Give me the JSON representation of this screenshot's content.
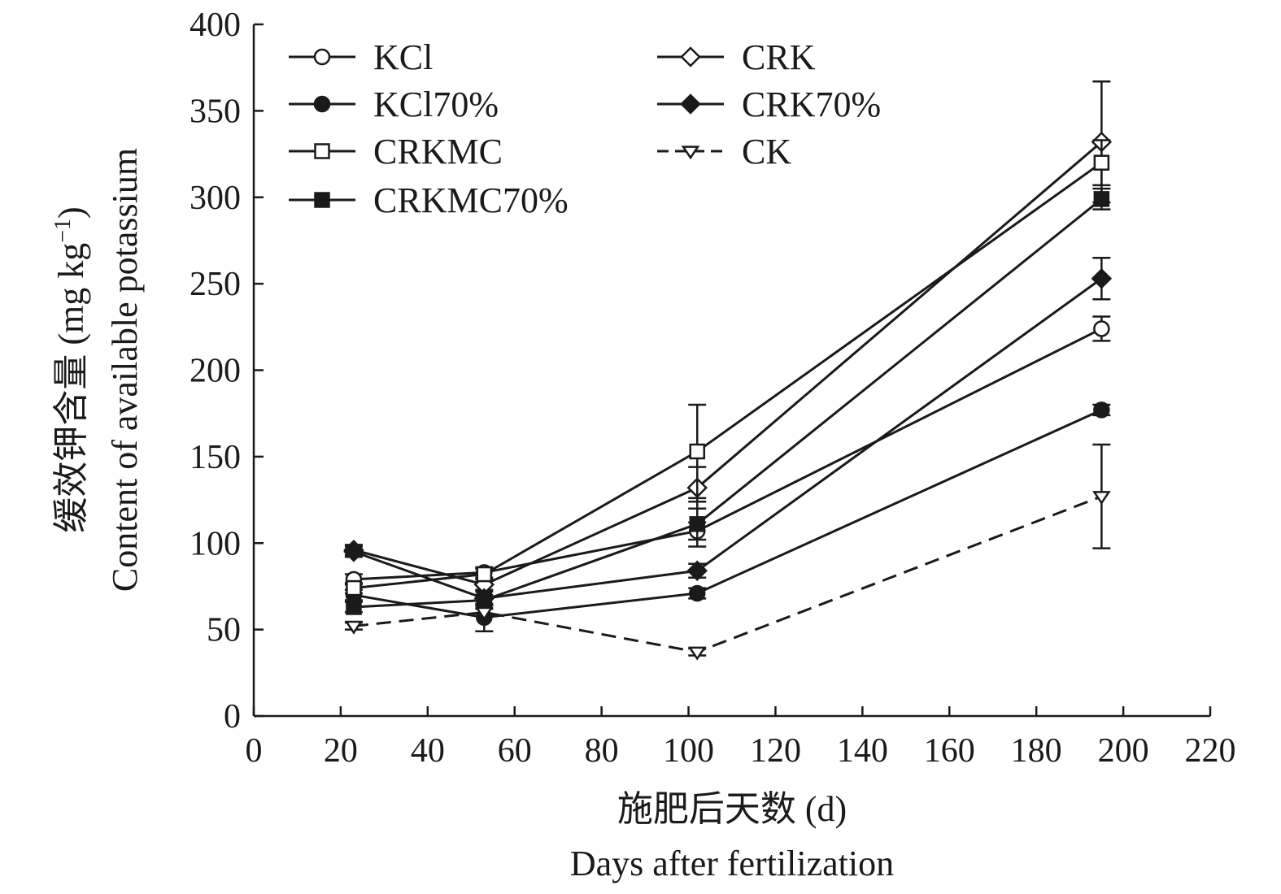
{
  "chart_data": {
    "type": "line",
    "xlabel_cn": "施肥后天数 (d)",
    "xlabel_en": "Days after fertilization",
    "ylabel_cn": "缓效钾含量 (mg kg",
    "ylabel_sup": "−1",
    "ylabel_close": ")",
    "ylabel_en": "Content of available potassium",
    "xlim": [
      0,
      220
    ],
    "ylim": [
      0,
      400
    ],
    "xticks": [
      0,
      20,
      40,
      60,
      80,
      100,
      120,
      140,
      160,
      180,
      200,
      220
    ],
    "yticks": [
      0,
      50,
      100,
      150,
      200,
      250,
      300,
      350,
      400
    ],
    "x": [
      23,
      53,
      102,
      195
    ],
    "legend_position": "top-left",
    "series": [
      {
        "name": "KCl",
        "marker": "circle-open",
        "dash": false,
        "values": [
          79,
          83,
          107,
          224
        ],
        "errors": [
          3,
          3,
          5,
          7
        ]
      },
      {
        "name": "CRK",
        "marker": "diamond-open",
        "dash": false,
        "values": [
          96,
          76,
          132,
          332
        ],
        "errors": [
          3,
          3,
          12,
          35
        ]
      },
      {
        "name": "KCl70%",
        "marker": "circle-filled",
        "dash": false,
        "values": [
          70,
          57,
          71,
          177
        ],
        "errors": [
          3,
          8,
          3,
          3
        ]
      },
      {
        "name": "CRK70%",
        "marker": "diamond-filled",
        "dash": false,
        "values": [
          95,
          68,
          84,
          253
        ],
        "errors": [
          3,
          4,
          4,
          12
        ]
      },
      {
        "name": "CRKMC",
        "marker": "square-open",
        "dash": false,
        "values": [
          74,
          82,
          153,
          320
        ],
        "errors": [
          3,
          3,
          27,
          13
        ]
      },
      {
        "name": "CK",
        "marker": "triangle-down-open",
        "dash": true,
        "values": [
          52,
          60,
          37,
          127
        ],
        "errors": [
          2,
          2,
          2,
          30
        ]
      },
      {
        "name": "CRKMC70%",
        "marker": "square-filled",
        "dash": false,
        "values": [
          63,
          67,
          111,
          299
        ],
        "errors": [
          3,
          3,
          13,
          6
        ]
      }
    ]
  }
}
